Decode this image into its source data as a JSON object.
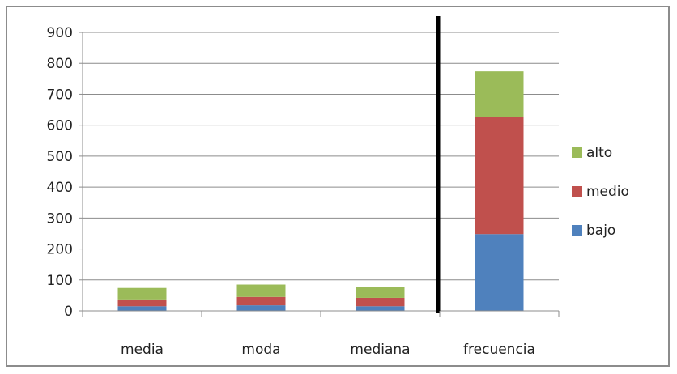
{
  "chart_data": {
    "type": "bar",
    "stacked": true,
    "categories": [
      "media",
      "moda",
      "mediana",
      "frecuencia"
    ],
    "series": [
      {
        "name": "bajo",
        "color": "#4f81bd",
        "values": [
          15,
          18,
          15,
          248
        ]
      },
      {
        "name": "medio",
        "color": "#c0504d",
        "values": [
          22,
          27,
          27,
          378
        ]
      },
      {
        "name": "alto",
        "color": "#9bbb59",
        "values": [
          37,
          40,
          35,
          148
        ]
      }
    ],
    "ylim": [
      0,
      900
    ],
    "yticks": [
      0,
      100,
      200,
      300,
      400,
      500,
      600,
      700,
      800,
      900
    ],
    "grid": true,
    "legend": "right",
    "legend_order": [
      "alto",
      "medio",
      "bajo"
    ],
    "separator": {
      "between": [
        "mediana",
        "frecuencia"
      ],
      "color": "#000000"
    },
    "title": "",
    "xlabel": "",
    "ylabel": ""
  }
}
